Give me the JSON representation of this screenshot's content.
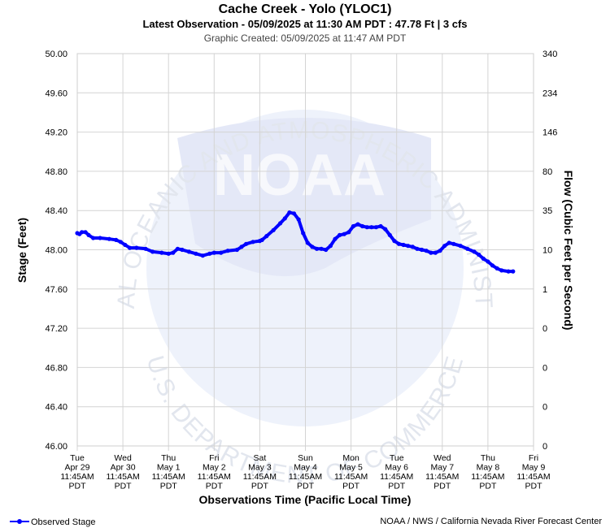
{
  "chart_data": {
    "type": "line",
    "title": "Cache Creek - Yolo (YLOC1)",
    "subtitle": "Latest Observation - 05/09/2025 at 11:30 AM PDT : 47.78 Ft | 3 cfs",
    "created": "Graphic Created: 05/09/2025 at 11:47 AM PDT",
    "ylabel": "Stage (Feet)",
    "y2label": "Flow (Cubic Feet per Second)",
    "xlabel": "Observations Time (Pacific Local Time)",
    "ylim": [
      46.0,
      50.0
    ],
    "yticks": [
      "46.00",
      "46.40",
      "46.80",
      "47.20",
      "47.60",
      "48.00",
      "48.40",
      "48.80",
      "49.20",
      "49.60",
      "50.00"
    ],
    "y2ticks": [
      "0",
      "0",
      "0",
      "0",
      "1",
      "10",
      "35",
      "80",
      "146",
      "234",
      "340"
    ],
    "xlim": [
      0,
      10
    ],
    "xticks": [
      [
        "Tue",
        "Apr 29",
        "11:45AM",
        "PDT"
      ],
      [
        "Wed",
        "Apr 30",
        "11:45AM",
        "PDT"
      ],
      [
        "Thu",
        "May 1",
        "11:45AM",
        "PDT"
      ],
      [
        "Fri",
        "May 2",
        "11:45AM",
        "PDT"
      ],
      [
        "Sat",
        "May 3",
        "11:45AM",
        "PDT"
      ],
      [
        "Sun",
        "May 4",
        "11:45AM",
        "PDT"
      ],
      [
        "Mon",
        "May 5",
        "11:45AM",
        "PDT"
      ],
      [
        "Tue",
        "May 6",
        "11:45AM",
        "PDT"
      ],
      [
        "Wed",
        "May 7",
        "11:45AM",
        "PDT"
      ],
      [
        "Thu",
        "May 8",
        "11:45AM",
        "PDT"
      ],
      [
        "Fri",
        "May 9",
        "11:45AM",
        "PDT"
      ]
    ],
    "grid": true,
    "legend": "bottom-left",
    "series": [
      {
        "name": "Observed Stage",
        "color": "#0000ff",
        "points": [
          [
            0.0,
            48.17
          ],
          [
            0.05,
            48.16
          ],
          [
            0.1,
            48.18
          ],
          [
            0.18,
            48.18
          ],
          [
            0.25,
            48.15
          ],
          [
            0.35,
            48.12
          ],
          [
            0.5,
            48.12
          ],
          [
            0.7,
            48.11
          ],
          [
            0.85,
            48.1
          ],
          [
            0.95,
            48.08
          ],
          [
            1.05,
            48.05
          ],
          [
            1.15,
            48.02
          ],
          [
            1.3,
            48.02
          ],
          [
            1.5,
            48.01
          ],
          [
            1.65,
            47.98
          ],
          [
            1.85,
            47.97
          ],
          [
            2.0,
            47.96
          ],
          [
            2.1,
            47.97
          ],
          [
            2.2,
            48.01
          ],
          [
            2.3,
            48.0
          ],
          [
            2.45,
            47.98
          ],
          [
            2.6,
            47.96
          ],
          [
            2.75,
            47.94
          ],
          [
            2.9,
            47.96
          ],
          [
            3.0,
            47.97
          ],
          [
            3.15,
            47.97
          ],
          [
            3.3,
            47.99
          ],
          [
            3.5,
            48.0
          ],
          [
            3.6,
            48.03
          ],
          [
            3.7,
            48.06
          ],
          [
            3.85,
            48.08
          ],
          [
            4.0,
            48.09
          ],
          [
            4.05,
            48.1
          ],
          [
            4.15,
            48.14
          ],
          [
            4.3,
            48.2
          ],
          [
            4.45,
            48.27
          ],
          [
            4.55,
            48.32
          ],
          [
            4.65,
            48.38
          ],
          [
            4.75,
            48.37
          ],
          [
            4.85,
            48.31
          ],
          [
            4.95,
            48.17
          ],
          [
            5.05,
            48.07
          ],
          [
            5.15,
            48.03
          ],
          [
            5.25,
            48.01
          ],
          [
            5.35,
            48.01
          ],
          [
            5.45,
            48.0
          ],
          [
            5.55,
            48.04
          ],
          [
            5.65,
            48.11
          ],
          [
            5.75,
            48.15
          ],
          [
            5.85,
            48.16
          ],
          [
            5.95,
            48.18
          ],
          [
            6.05,
            48.24
          ],
          [
            6.15,
            48.26
          ],
          [
            6.25,
            48.24
          ],
          [
            6.35,
            48.23
          ],
          [
            6.45,
            48.23
          ],
          [
            6.55,
            48.23
          ],
          [
            6.65,
            48.24
          ],
          [
            6.75,
            48.21
          ],
          [
            6.85,
            48.15
          ],
          [
            6.95,
            48.09
          ],
          [
            7.05,
            48.06
          ],
          [
            7.15,
            48.05
          ],
          [
            7.25,
            48.04
          ],
          [
            7.35,
            48.03
          ],
          [
            7.45,
            48.01
          ],
          [
            7.55,
            48.0
          ],
          [
            7.65,
            47.99
          ],
          [
            7.75,
            47.97
          ],
          [
            7.85,
            47.97
          ],
          [
            7.95,
            47.99
          ],
          [
            8.05,
            48.04
          ],
          [
            8.15,
            48.07
          ],
          [
            8.25,
            48.06
          ],
          [
            8.4,
            48.04
          ],
          [
            8.55,
            48.01
          ],
          [
            8.7,
            47.98
          ],
          [
            8.8,
            47.95
          ],
          [
            8.9,
            47.91
          ],
          [
            9.0,
            47.88
          ],
          [
            9.1,
            47.84
          ],
          [
            9.2,
            47.81
          ],
          [
            9.3,
            47.79
          ],
          [
            9.45,
            47.78
          ],
          [
            9.55,
            47.78
          ]
        ]
      }
    ]
  },
  "legend": {
    "label": "Observed Stage"
  },
  "footer": {
    "credit": "NOAA / NWS / California Nevada River Forecast Center"
  },
  "watermark": {
    "logo_text": "NOAA",
    "ring_top": "NATIONAL OCEANIC AND ATMOSPHERIC ADMINISTRATION",
    "ring_bottom": "U.S. DEPARTMENT OF COMMERCE"
  }
}
